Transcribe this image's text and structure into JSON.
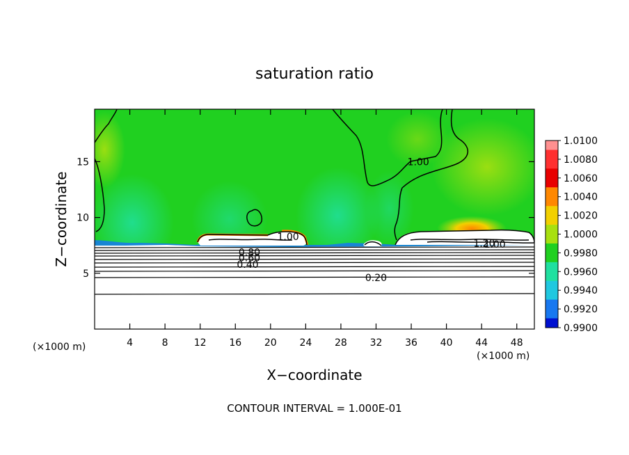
{
  "chart_data": {
    "type": "heatmap",
    "title": "saturation ratio",
    "xlabel": "X−coordinate",
    "ylabel": "Z−coordinate",
    "x_unit_left": "(×1000 m)",
    "x_unit_right": "(×1000 m)",
    "xlim": [
      0,
      50
    ],
    "ylim": [
      0,
      19.7
    ],
    "xticks": [
      4,
      8,
      12,
      16,
      20,
      24,
      28,
      32,
      36,
      40,
      44,
      48
    ],
    "yticks": [
      5,
      10,
      15
    ],
    "footer": "CONTOUR INTERVAL = 1.000E-01",
    "colorbar": {
      "levels": [
        "1.0100",
        "1.0080",
        "1.0060",
        "1.0040",
        "1.0020",
        "1.0000",
        "0.9980",
        "0.9960",
        "0.9940",
        "0.9920",
        "0.9900"
      ],
      "colors": [
        "#ff9090",
        "#ff3030",
        "#e80000",
        "#ff8800",
        "#f2d000",
        "#a8e010",
        "#20d020",
        "#20e0a0",
        "#20c8e0",
        "#1878f0",
        "#0010d0",
        "#202080",
        "#7010a0"
      ]
    },
    "contour_labels": [
      {
        "text": "1.00",
        "x": 36.8,
        "z": 15.0
      },
      {
        "text": "1.00",
        "x": 22.0,
        "z": 8.3
      },
      {
        "text": "1.20",
        "x": 44.3,
        "z": 7.7
      },
      {
        "text": "1.00",
        "x": 45.5,
        "z": 7.6
      },
      {
        "text": "0.80",
        "x": 17.6,
        "z": 6.9
      },
      {
        "text": "0.60",
        "x": 17.6,
        "z": 6.4
      },
      {
        "text": "0.40",
        "x": 17.4,
        "z": 5.8
      },
      {
        "text": "0.20",
        "x": 32.0,
        "z": 4.6
      }
    ]
  }
}
